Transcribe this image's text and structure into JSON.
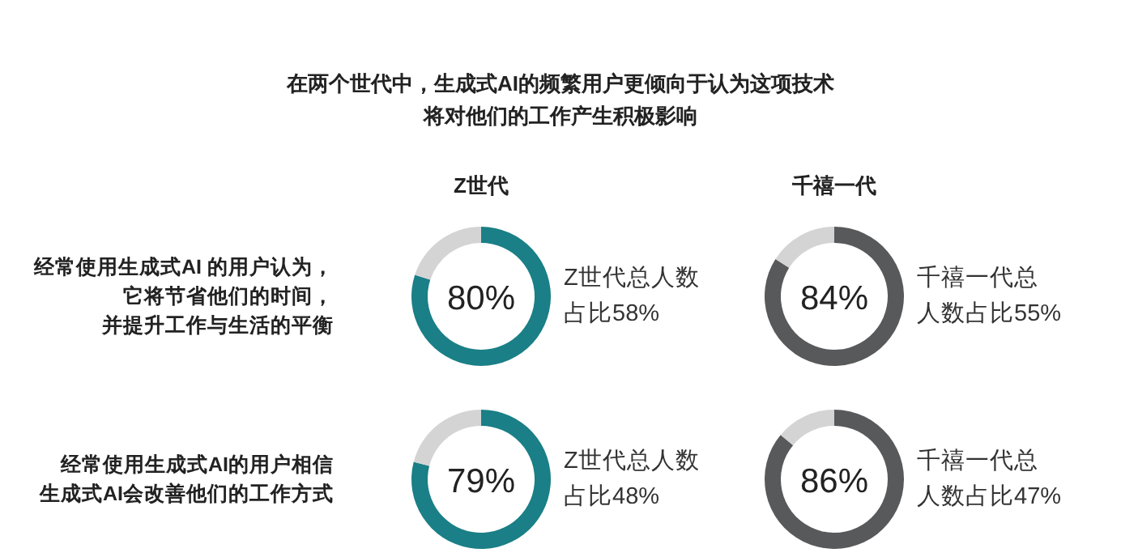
{
  "chart_data": [
    {
      "type": "donut",
      "title": "在两个世代中，生成式AI的频繁用户更倾向于认为这项技术将对他们的工作产生积极影响",
      "subtitle": "Z世代",
      "ylabel": "经常使用生成式AI 的用户认为，它将节省他们的时间，并提升工作与生活的平衡",
      "categories": [
        null,
        null
      ],
      "values": [
        80,
        20
      ],
      "colors": [
        "#1a7f86",
        "#d4d4d4"
      ],
      "value_labels": [
        "80%",
        null
      ],
      "annotations": [
        "Z世代总人数占比58%"
      ]
    },
    {
      "type": "donut",
      "subtitle": "千禧一代",
      "categories": [
        null,
        null
      ],
      "values": [
        84,
        16
      ],
      "colors": [
        "#58595b",
        "#d4d4d4"
      ],
      "value_labels": [
        "84%",
        null
      ],
      "annotations": [
        "千禧一代总人数占比55%"
      ]
    },
    {
      "type": "donut",
      "ylabel": "经常使用生成式AI的用户相信生成式AI会改善他们的工作方式",
      "categories": [
        null,
        null
      ],
      "values": [
        79,
        21
      ],
      "colors": [
        "#1a7f86",
        "#d4d4d4"
      ],
      "value_labels": [
        "79%",
        null
      ],
      "annotations": [
        "Z世代总人数占比48%"
      ]
    },
    {
      "type": "donut",
      "categories": [
        null,
        null
      ],
      "values": [
        86,
        14
      ],
      "colors": [
        "#58595b",
        "#d4d4d4"
      ],
      "value_labels": [
        "86%",
        null
      ],
      "annotations": [
        "千禧一代总人数占比47%"
      ]
    }
  ]
}
